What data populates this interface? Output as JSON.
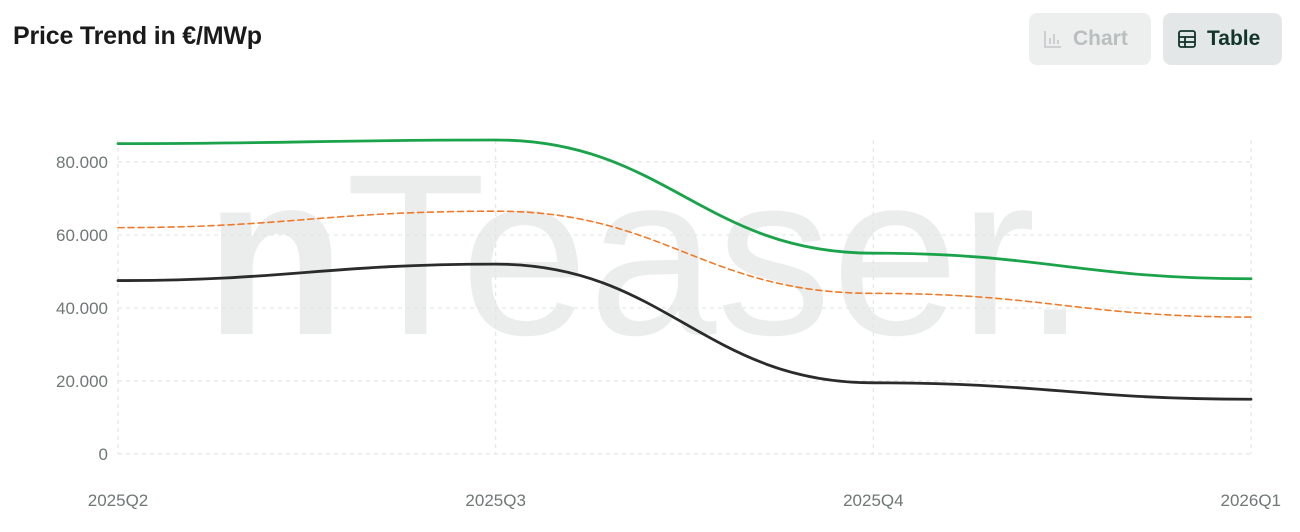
{
  "header": {
    "title": "Price Trend in €/MWp",
    "chart_button_label": "Chart",
    "table_button_label": "Table",
    "active_view": "Table"
  },
  "watermark": {
    "bold_part": "n",
    "rest": "Teaser."
  },
  "colors": {
    "series_top": "#1aa34a",
    "series_mid": "#f07a2a",
    "series_low": "#2b2b2b",
    "grid": "#e3e6e6",
    "tick_text": "#6f7777"
  },
  "chart_data": {
    "type": "line",
    "title": "Price Trend in €/MWp",
    "xlabel": "",
    "ylabel": "",
    "categories": [
      "2025Q2",
      "2025Q3",
      "2025Q4",
      "2026Q1"
    ],
    "ylim": [
      0,
      86000
    ],
    "yticks": [
      0,
      20000,
      40000,
      60000,
      80000
    ],
    "ytick_labels": [
      "0",
      "20.000",
      "40.000",
      "60.000",
      "80.000"
    ],
    "grid": true,
    "legend": "none",
    "series": [
      {
        "values": [
          85000,
          86000,
          55000,
          48000
        ],
        "color": "#1aa34a",
        "dashed": false
      },
      {
        "values": [
          62000,
          66500,
          44000,
          37500
        ],
        "color": "#f07a2a",
        "dashed": true
      },
      {
        "values": [
          47500,
          52000,
          19500,
          15000
        ],
        "color": "#2b2b2b",
        "dashed": false
      }
    ]
  }
}
